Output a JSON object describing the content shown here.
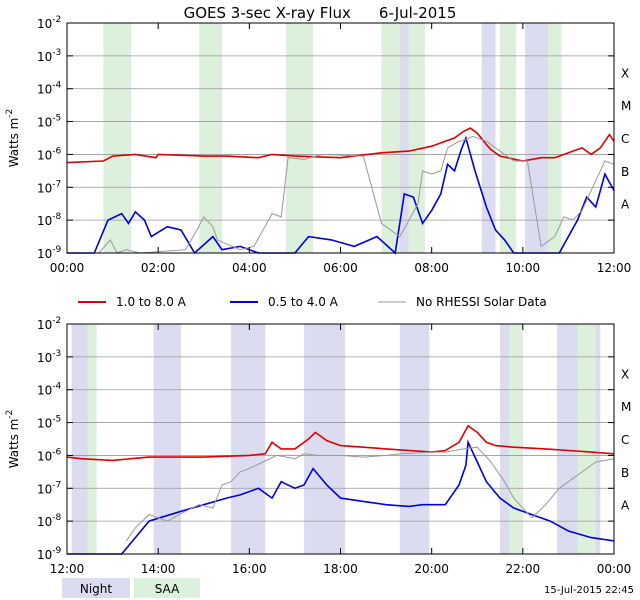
{
  "chart_data": {
    "title": "GOES 3-sec X-ray Flux",
    "date": "6-Jul-2015",
    "ylabel": "Watts m",
    "ylabel_exp": "-2",
    "yticks": [
      {
        "base": "10",
        "exp": "-2"
      },
      {
        "base": "10",
        "exp": "-3"
      },
      {
        "base": "10",
        "exp": "-4"
      },
      {
        "base": "10",
        "exp": "-5"
      },
      {
        "base": "10",
        "exp": "-6"
      },
      {
        "base": "10",
        "exp": "-7"
      },
      {
        "base": "10",
        "exp": "-8"
      },
      {
        "base": "10",
        "exp": "-9"
      }
    ],
    "flare_classes": [
      "X",
      "M",
      "C",
      "B",
      "A"
    ],
    "legend": [
      {
        "label": "1.0 to 8.0 A",
        "color": "#dd0000"
      },
      {
        "label": "0.5 to 4.0 A",
        "color": "#0000dd"
      },
      {
        "label": "No RHESSI Solar Data",
        "color": "#999999"
      }
    ],
    "key": [
      {
        "label": "Night",
        "color": "#dcdcf0"
      },
      {
        "label": "SAA",
        "color": "#dcf0dc"
      }
    ],
    "timestamp": "15-Jul-2015 22:45",
    "panels": [
      {
        "xticks": [
          "00:00",
          "02:00",
          "04:00",
          "06:00",
          "08:00",
          "10:00",
          "12:00"
        ],
        "xrange_hours": [
          0,
          12
        ],
        "night": [
          [
            1.1,
            1.4
          ],
          [
            3.05,
            3.4
          ],
          [
            5.05,
            5.4
          ],
          [
            7.05,
            7.5
          ],
          [
            9.1,
            9.4
          ],
          [
            10.05,
            10.6
          ]
        ],
        "saa": [
          [
            0.8,
            1.4
          ],
          [
            2.9,
            3.4
          ],
          [
            4.8,
            5.4
          ],
          [
            6.9,
            7.3
          ],
          [
            7.5,
            7.85
          ],
          [
            9.5,
            9.85
          ],
          [
            10.55,
            10.85
          ]
        ],
        "series": [
          {
            "name": "1.0 to 8.0 A",
            "color": "#dd0000",
            "points": [
              [
                0,
                -6.25
              ],
              [
                0.8,
                -6.2
              ],
              [
                1.0,
                -6.05
              ],
              [
                1.5,
                -6.0
              ],
              [
                1.95,
                -6.1
              ],
              [
                2.0,
                -6.0
              ],
              [
                3.0,
                -6.05
              ],
              [
                3.5,
                -6.05
              ],
              [
                4.2,
                -6.1
              ],
              [
                4.5,
                -6.0
              ],
              [
                5.0,
                -6.05
              ],
              [
                6.0,
                -6.1
              ],
              [
                6.9,
                -5.95
              ],
              [
                7.5,
                -5.9
              ],
              [
                8.0,
                -5.75
              ],
              [
                8.3,
                -5.6
              ],
              [
                8.5,
                -5.5
              ],
              [
                8.7,
                -5.3
              ],
              [
                8.85,
                -5.2
              ],
              [
                9.0,
                -5.35
              ],
              [
                9.2,
                -5.7
              ],
              [
                9.3,
                -5.85
              ],
              [
                9.5,
                -6.05
              ],
              [
                10.0,
                -6.2
              ],
              [
                10.4,
                -6.1
              ],
              [
                10.7,
                -6.1
              ],
              [
                11.1,
                -5.9
              ],
              [
                11.3,
                -5.8
              ],
              [
                11.5,
                -6.0
              ],
              [
                11.7,
                -5.8
              ],
              [
                11.9,
                -5.4
              ],
              [
                12.0,
                -5.6
              ]
            ]
          },
          {
            "name": "0.5 to 4.0 A",
            "color": "#0000dd",
            "points": [
              [
                0,
                -9.0
              ],
              [
                0.6,
                -9.0
              ],
              [
                0.9,
                -8.0
              ],
              [
                1.2,
                -7.8
              ],
              [
                1.35,
                -8.1
              ],
              [
                1.5,
                -7.75
              ],
              [
                1.7,
                -8.0
              ],
              [
                1.85,
                -8.5
              ],
              [
                2.2,
                -8.2
              ],
              [
                2.5,
                -8.3
              ],
              [
                2.8,
                -9.0
              ],
              [
                3.2,
                -8.5
              ],
              [
                3.4,
                -8.9
              ],
              [
                3.8,
                -8.8
              ],
              [
                4.2,
                -9.0
              ],
              [
                5.0,
                -9.0
              ],
              [
                5.3,
                -8.5
              ],
              [
                5.8,
                -8.6
              ],
              [
                6.3,
                -8.8
              ],
              [
                6.8,
                -8.5
              ],
              [
                7.2,
                -9.0
              ],
              [
                7.4,
                -7.2
              ],
              [
                7.6,
                -7.3
              ],
              [
                7.8,
                -8.1
              ],
              [
                8.0,
                -7.7
              ],
              [
                8.2,
                -7.2
              ],
              [
                8.35,
                -6.3
              ],
              [
                8.5,
                -6.5
              ],
              [
                8.65,
                -5.85
              ],
              [
                8.75,
                -5.5
              ],
              [
                8.95,
                -6.5
              ],
              [
                9.2,
                -7.6
              ],
              [
                9.4,
                -8.3
              ],
              [
                9.6,
                -8.6
              ],
              [
                9.8,
                -9.0
              ],
              [
                10.8,
                -9.0
              ],
              [
                11.2,
                -8.0
              ],
              [
                11.4,
                -7.3
              ],
              [
                11.6,
                -7.6
              ],
              [
                11.8,
                -6.6
              ],
              [
                12.0,
                -7.1
              ]
            ]
          },
          {
            "name": "No RHESSI Solar Data",
            "color": "#999999",
            "points": [
              [
                0.7,
                -9.0
              ],
              [
                0.95,
                -8.6
              ],
              [
                1.1,
                -9.0
              ],
              [
                1.3,
                -8.9
              ],
              [
                1.6,
                -9.0
              ],
              [
                2.6,
                -8.9
              ],
              [
                2.85,
                -8.3
              ],
              [
                3.0,
                -7.9
              ],
              [
                3.2,
                -8.2
              ],
              [
                3.3,
                -8.6
              ],
              [
                3.8,
                -8.9
              ],
              [
                4.1,
                -8.8
              ],
              [
                4.5,
                -7.8
              ],
              [
                4.7,
                -7.9
              ],
              [
                4.85,
                -6.1
              ],
              [
                5.2,
                -6.15
              ],
              [
                5.6,
                -6.0
              ],
              [
                6.5,
                -6.05
              ],
              [
                6.9,
                -8.1
              ],
              [
                7.3,
                -8.5
              ],
              [
                7.7,
                -7.5
              ],
              [
                7.8,
                -6.5
              ],
              [
                8.0,
                -6.6
              ],
              [
                8.2,
                -6.5
              ],
              [
                8.35,
                -5.8
              ],
              [
                8.6,
                -5.6
              ],
              [
                8.75,
                -5.55
              ],
              [
                8.9,
                -5.45
              ],
              [
                9.2,
                -5.6
              ],
              [
                9.5,
                -5.9
              ],
              [
                9.8,
                -6.2
              ],
              [
                10.1,
                -6.2
              ],
              [
                10.4,
                -8.8
              ],
              [
                10.7,
                -8.5
              ],
              [
                10.9,
                -7.9
              ],
              [
                11.1,
                -8.0
              ],
              [
                11.3,
                -7.7
              ],
              [
                11.6,
                -6.8
              ],
              [
                11.8,
                -6.2
              ],
              [
                12.0,
                -6.3
              ]
            ]
          }
        ]
      },
      {
        "xticks": [
          "12:00",
          "14:00",
          "16:00",
          "18:00",
          "20:00",
          "22:00",
          "00:00"
        ],
        "xrange_hours": [
          0,
          12
        ],
        "night": [
          [
            0.1,
            0.45
          ],
          [
            1.9,
            2.5
          ],
          [
            3.6,
            4.35
          ],
          [
            5.2,
            6.1
          ],
          [
            7.3,
            7.95
          ],
          [
            9.5,
            10.0
          ],
          [
            10.75,
            11.2
          ],
          [
            11.45,
            11.7
          ]
        ],
        "saa": [
          [
            0.45,
            0.65
          ],
          [
            9.7,
            10.0
          ],
          [
            11.2,
            11.6
          ]
        ],
        "series": [
          {
            "name": "1.0 to 8.0 A",
            "color": "#dd0000",
            "points": [
              [
                0,
                -6.05
              ],
              [
                0.3,
                -6.1
              ],
              [
                1.0,
                -6.15
              ],
              [
                1.8,
                -6.05
              ],
              [
                3.0,
                -6.05
              ],
              [
                4.0,
                -6.0
              ],
              [
                4.35,
                -5.95
              ],
              [
                4.5,
                -5.6
              ],
              [
                4.7,
                -5.8
              ],
              [
                5.0,
                -5.8
              ],
              [
                5.3,
                -5.5
              ],
              [
                5.45,
                -5.3
              ],
              [
                5.7,
                -5.55
              ],
              [
                6.0,
                -5.7
              ],
              [
                6.5,
                -5.75
              ],
              [
                7.0,
                -5.8
              ],
              [
                8.0,
                -5.9
              ],
              [
                8.3,
                -5.85
              ],
              [
                8.6,
                -5.6
              ],
              [
                8.8,
                -5.1
              ],
              [
                9.0,
                -5.3
              ],
              [
                9.2,
                -5.6
              ],
              [
                9.4,
                -5.7
              ],
              [
                9.8,
                -5.75
              ],
              [
                10.5,
                -5.8
              ],
              [
                11.0,
                -5.85
              ],
              [
                11.5,
                -5.9
              ],
              [
                12.0,
                -5.95
              ]
            ]
          },
          {
            "name": "0.5 to 4.0 A",
            "color": "#0000dd",
            "points": [
              [
                0,
                -9.0
              ],
              [
                0.6,
                -9.0
              ],
              [
                1.2,
                -9.0
              ],
              [
                1.5,
                -8.5
              ],
              [
                1.8,
                -8.0
              ],
              [
                2.5,
                -7.7
              ],
              [
                3.0,
                -7.5
              ],
              [
                3.5,
                -7.3
              ],
              [
                3.8,
                -7.2
              ],
              [
                4.2,
                -7.0
              ],
              [
                4.5,
                -7.3
              ],
              [
                4.7,
                -6.8
              ],
              [
                5.0,
                -7.0
              ],
              [
                5.2,
                -6.9
              ],
              [
                5.4,
                -6.4
              ],
              [
                5.7,
                -6.9
              ],
              [
                6.0,
                -7.3
              ],
              [
                6.5,
                -7.4
              ],
              [
                7.0,
                -7.5
              ],
              [
                7.5,
                -7.55
              ],
              [
                7.8,
                -7.5
              ],
              [
                8.3,
                -7.5
              ],
              [
                8.6,
                -6.9
              ],
              [
                8.75,
                -6.3
              ],
              [
                8.8,
                -5.6
              ],
              [
                9.0,
                -6.2
              ],
              [
                9.2,
                -6.8
              ],
              [
                9.5,
                -7.3
              ],
              [
                9.8,
                -7.6
              ],
              [
                10.2,
                -7.8
              ],
              [
                10.6,
                -8.0
              ],
              [
                11.0,
                -8.3
              ],
              [
                11.5,
                -8.5
              ],
              [
                12.0,
                -8.6
              ]
            ]
          },
          {
            "name": "No RHESSI Solar Data",
            "color": "#999999",
            "points": [
              [
                1.3,
                -8.6
              ],
              [
                1.5,
                -8.2
              ],
              [
                1.8,
                -7.8
              ],
              [
                2.2,
                -8.0
              ],
              [
                2.6,
                -7.7
              ],
              [
                2.9,
                -7.5
              ],
              [
                3.2,
                -7.6
              ],
              [
                3.4,
                -6.9
              ],
              [
                3.6,
                -6.8
              ],
              [
                3.8,
                -6.5
              ],
              [
                4.0,
                -6.4
              ],
              [
                4.3,
                -6.2
              ],
              [
                4.6,
                -6.0
              ],
              [
                5.0,
                -6.1
              ],
              [
                5.2,
                -5.95
              ],
              [
                5.5,
                -6.0
              ],
              [
                6.0,
                -6.0
              ],
              [
                6.5,
                -6.05
              ],
              [
                7.0,
                -6.0
              ],
              [
                7.3,
                -5.95
              ],
              [
                8.0,
                -5.9
              ],
              [
                8.3,
                -5.9
              ],
              [
                8.7,
                -5.8
              ],
              [
                9.0,
                -5.75
              ],
              [
                9.3,
                -6.2
              ],
              [
                9.6,
                -6.8
              ],
              [
                9.8,
                -7.3
              ],
              [
                10.0,
                -7.6
              ],
              [
                10.2,
                -7.9
              ],
              [
                10.5,
                -7.5
              ],
              [
                10.8,
                -7.0
              ],
              [
                11.0,
                -6.8
              ],
              [
                11.3,
                -6.5
              ],
              [
                11.6,
                -6.2
              ],
              [
                12.0,
                -6.1
              ]
            ]
          }
        ]
      }
    ]
  }
}
